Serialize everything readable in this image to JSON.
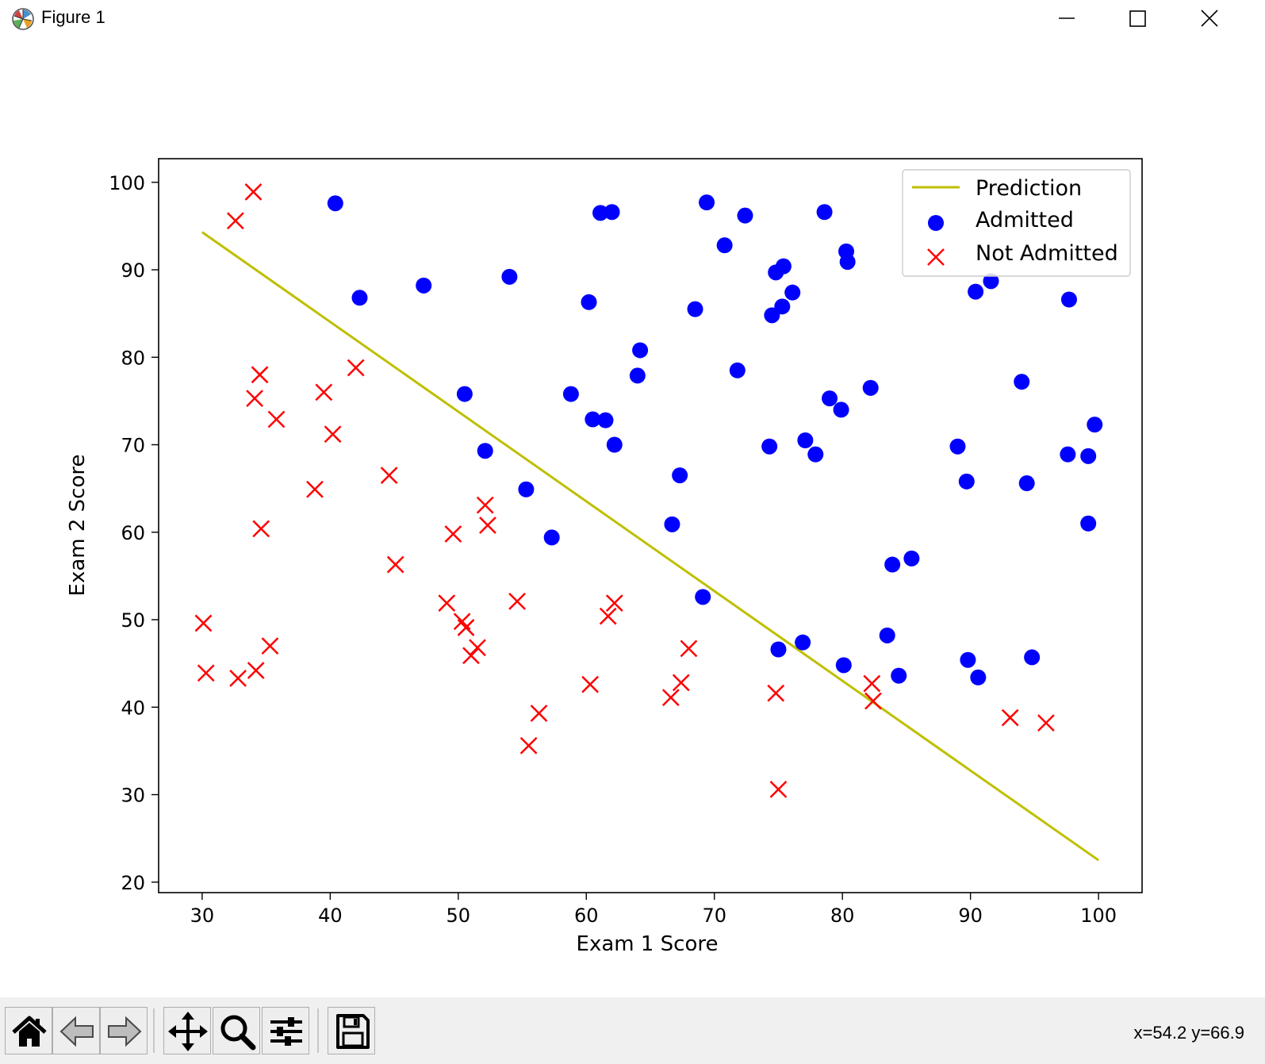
{
  "window": {
    "title": "Figure 1"
  },
  "toolbar": {
    "buttons": [
      {
        "name": "home-button",
        "icon": "home-icon"
      },
      {
        "name": "back-button",
        "icon": "arrow-left-icon"
      },
      {
        "name": "forward-button",
        "icon": "arrow-right-icon"
      },
      {
        "name": "pan-button",
        "icon": "move-icon"
      },
      {
        "name": "zoom-button",
        "icon": "magnifier-icon"
      },
      {
        "name": "configure-subplots-button",
        "icon": "sliders-icon"
      },
      {
        "name": "save-button",
        "icon": "floppy-disk-icon"
      }
    ],
    "coords": "x=54.2 y=66.9"
  },
  "chart_data": {
    "type": "scatter",
    "title": "",
    "xlabel": "Exam 1 Score",
    "ylabel": "Exam 2 Score",
    "xlim": [
      26.6,
      103.4
    ],
    "ylim": [
      18.8,
      102.7
    ],
    "xticks": [
      30,
      40,
      50,
      60,
      70,
      80,
      90,
      100
    ],
    "yticks": [
      20,
      30,
      40,
      50,
      60,
      70,
      80,
      90,
      100
    ],
    "grid": false,
    "legend": {
      "position": "top-right",
      "entries": [
        "Prediction",
        "Admitted",
        "Not Admitted"
      ]
    },
    "prediction_line": {
      "name": "Prediction",
      "color": "#bfbf00",
      "x": [
        30,
        100
      ],
      "y": [
        94.3,
        22.5
      ]
    },
    "series": [
      {
        "name": "Admitted",
        "marker": "circle",
        "color": "#0000ff",
        "points": [
          [
            40.4,
            97.6
          ],
          [
            42.3,
            86.8
          ],
          [
            47.3,
            88.2
          ],
          [
            50.5,
            75.8
          ],
          [
            52.1,
            69.3
          ],
          [
            54.0,
            89.2
          ],
          [
            55.3,
            64.9
          ],
          [
            57.3,
            59.4
          ],
          [
            58.8,
            75.8
          ],
          [
            60.2,
            86.3
          ],
          [
            60.5,
            72.9
          ],
          [
            61.1,
            96.5
          ],
          [
            61.5,
            72.8
          ],
          [
            62.0,
            96.6
          ],
          [
            62.2,
            70.0
          ],
          [
            64.0,
            77.9
          ],
          [
            64.2,
            80.8
          ],
          [
            66.7,
            60.9
          ],
          [
            67.3,
            66.5
          ],
          [
            68.5,
            85.5
          ],
          [
            69.1,
            52.6
          ],
          [
            69.4,
            97.7
          ],
          [
            70.8,
            92.8
          ],
          [
            71.8,
            78.5
          ],
          [
            72.4,
            96.2
          ],
          [
            74.3,
            69.8
          ],
          [
            74.5,
            84.8
          ],
          [
            74.8,
            89.7
          ],
          [
            75.3,
            85.8
          ],
          [
            75.4,
            90.4
          ],
          [
            76.1,
            87.4
          ],
          [
            75.0,
            46.6
          ],
          [
            76.9,
            47.4
          ],
          [
            77.1,
            70.5
          ],
          [
            77.9,
            68.9
          ],
          [
            78.6,
            96.6
          ],
          [
            79.0,
            75.3
          ],
          [
            79.9,
            74.0
          ],
          [
            80.1,
            44.8
          ],
          [
            80.3,
            92.1
          ],
          [
            80.4,
            90.9
          ],
          [
            82.2,
            76.5
          ],
          [
            83.5,
            48.2
          ],
          [
            83.9,
            56.3
          ],
          [
            84.4,
            43.6
          ],
          [
            85.4,
            57.0
          ],
          [
            89.0,
            69.8
          ],
          [
            89.7,
            65.8
          ],
          [
            89.8,
            45.4
          ],
          [
            90.4,
            87.5
          ],
          [
            90.6,
            43.4
          ],
          [
            91.6,
            88.7
          ],
          [
            94.0,
            77.2
          ],
          [
            94.4,
            65.6
          ],
          [
            94.8,
            45.7
          ],
          [
            97.6,
            68.9
          ],
          [
            97.7,
            86.6
          ],
          [
            99.2,
            68.7
          ],
          [
            99.2,
            61.0
          ],
          [
            99.7,
            72.3
          ]
        ]
      },
      {
        "name": "Not Admitted",
        "marker": "x",
        "color": "#ff0000",
        "points": [
          [
            30.1,
            49.6
          ],
          [
            30.3,
            43.9
          ],
          [
            32.6,
            95.6
          ],
          [
            32.8,
            43.3
          ],
          [
            34.0,
            98.9
          ],
          [
            34.1,
            75.3
          ],
          [
            34.2,
            44.2
          ],
          [
            34.5,
            78.0
          ],
          [
            34.6,
            60.4
          ],
          [
            35.3,
            47.0
          ],
          [
            35.8,
            72.9
          ],
          [
            38.8,
            64.9
          ],
          [
            39.5,
            76.0
          ],
          [
            40.2,
            71.2
          ],
          [
            42.0,
            78.8
          ],
          [
            44.6,
            66.5
          ],
          [
            45.1,
            56.3
          ],
          [
            49.1,
            51.9
          ],
          [
            49.6,
            59.8
          ],
          [
            50.3,
            49.8
          ],
          [
            50.6,
            49.1
          ],
          [
            51.0,
            45.9
          ],
          [
            51.5,
            46.8
          ],
          [
            52.1,
            63.1
          ],
          [
            52.3,
            60.8
          ],
          [
            54.6,
            52.1
          ],
          [
            55.5,
            35.6
          ],
          [
            56.3,
            39.3
          ],
          [
            60.3,
            42.6
          ],
          [
            61.7,
            50.4
          ],
          [
            62.2,
            51.9
          ],
          [
            66.6,
            41.1
          ],
          [
            67.4,
            42.8
          ],
          [
            68.0,
            46.7
          ],
          [
            74.8,
            41.6
          ],
          [
            75.0,
            30.6
          ],
          [
            82.3,
            42.7
          ],
          [
            82.4,
            40.7
          ],
          [
            93.1,
            38.8
          ],
          [
            95.9,
            38.2
          ]
        ]
      }
    ]
  }
}
